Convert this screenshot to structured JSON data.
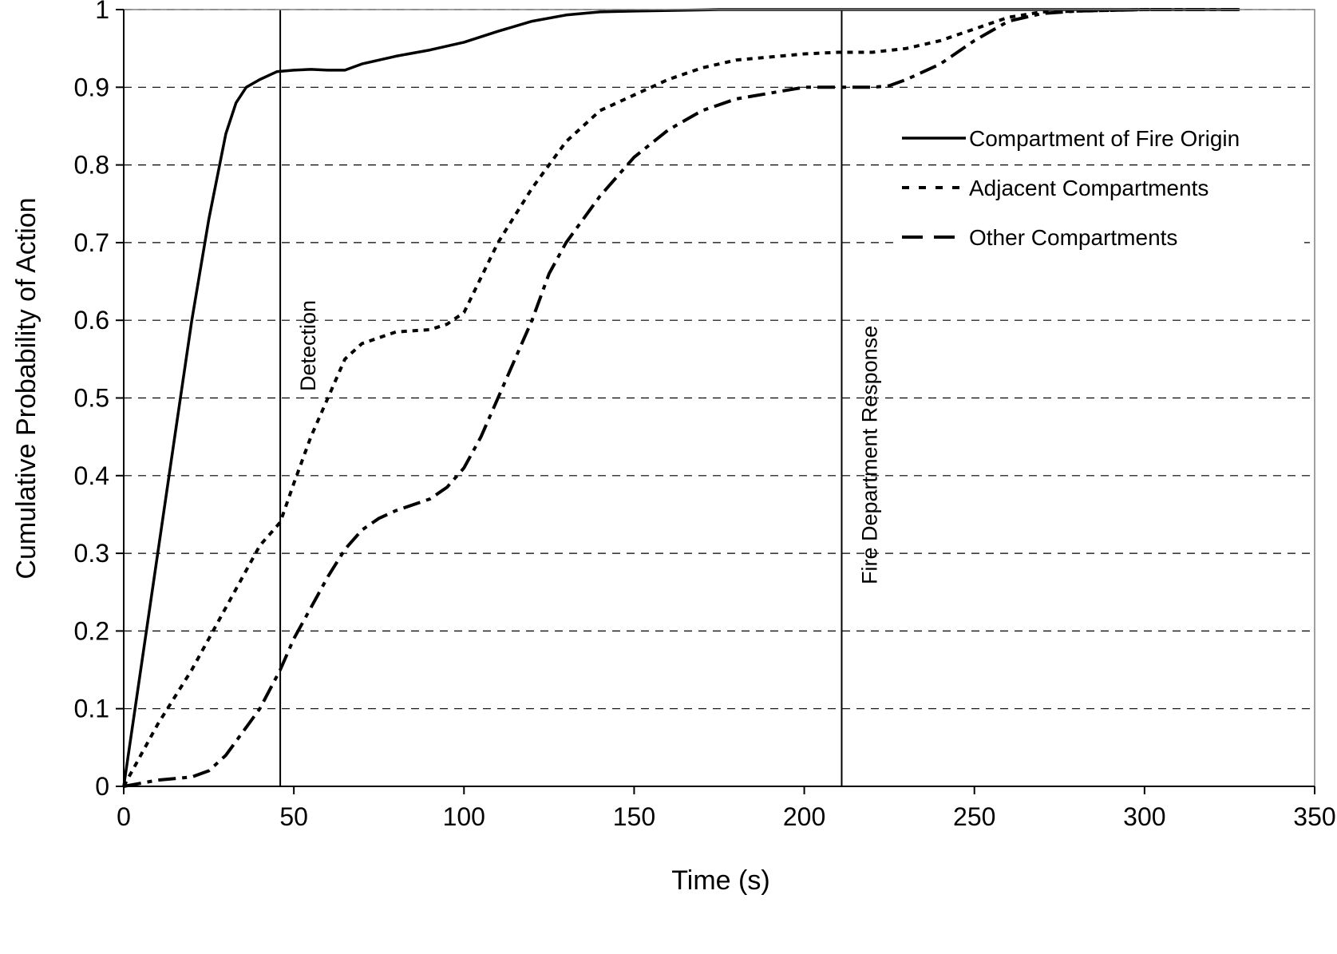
{
  "chart_data": {
    "type": "line",
    "title": "",
    "xlabel": "Time (s)",
    "ylabel": "Cumulative Probability of Action",
    "xlim": [
      0,
      350
    ],
    "ylim": [
      0,
      1
    ],
    "xticks": [
      0,
      50,
      100,
      150,
      200,
      250,
      300,
      350
    ],
    "yticks": [
      0,
      0.1,
      0.2,
      0.3,
      0.4,
      0.5,
      0.6,
      0.7,
      0.8,
      0.9,
      1
    ],
    "ytick_labels": [
      "0",
      "0.1",
      "0.2",
      "0.3",
      "0.4",
      "0.5",
      "0.6",
      "0.7",
      "0.8",
      "0.9",
      "1"
    ],
    "grid": "horizontal dashed",
    "legend_position": "right",
    "series": [
      {
        "name": "Compartment of Fire Origin",
        "line_style": "solid",
        "x": [
          0,
          5,
          10,
          15,
          20,
          25,
          30,
          33,
          36,
          40,
          45,
          50,
          55,
          60,
          65,
          70,
          80,
          90,
          100,
          110,
          120,
          130,
          140,
          150,
          175,
          200,
          250,
          300,
          328
        ],
        "y": [
          0,
          0.15,
          0.3,
          0.45,
          0.6,
          0.73,
          0.84,
          0.88,
          0.9,
          0.91,
          0.92,
          0.922,
          0.923,
          0.922,
          0.922,
          0.93,
          0.94,
          0.948,
          0.958,
          0.972,
          0.985,
          0.993,
          0.997,
          0.998,
          1,
          1,
          1,
          1,
          1
        ]
      },
      {
        "name": "Adjacent Compartments",
        "line_style": "short-dash",
        "x": [
          0,
          10,
          20,
          30,
          40,
          46,
          50,
          55,
          60,
          65,
          70,
          80,
          90,
          95,
          100,
          110,
          120,
          130,
          140,
          150,
          160,
          170,
          180,
          200,
          210,
          220,
          230,
          240,
          250,
          260,
          270,
          300,
          328
        ],
        "y": [
          0,
          0.08,
          0.15,
          0.23,
          0.31,
          0.34,
          0.39,
          0.45,
          0.5,
          0.55,
          0.57,
          0.585,
          0.588,
          0.595,
          0.61,
          0.7,
          0.77,
          0.83,
          0.87,
          0.89,
          0.91,
          0.925,
          0.935,
          0.943,
          0.945,
          0.945,
          0.95,
          0.96,
          0.975,
          0.99,
          0.997,
          1,
          1
        ]
      },
      {
        "name": "Other Compartments",
        "line_style": "long-dash",
        "x": [
          0,
          10,
          20,
          25,
          30,
          35,
          40,
          46,
          50,
          55,
          60,
          65,
          70,
          75,
          80,
          90,
          95,
          100,
          105,
          110,
          115,
          120,
          125,
          130,
          140,
          150,
          160,
          170,
          180,
          200,
          210,
          220,
          225,
          230,
          240,
          250,
          260,
          270,
          280,
          300,
          328
        ],
        "y": [
          0,
          0.008,
          0.012,
          0.02,
          0.04,
          0.07,
          0.1,
          0.15,
          0.19,
          0.23,
          0.27,
          0.305,
          0.33,
          0.345,
          0.355,
          0.37,
          0.385,
          0.41,
          0.45,
          0.5,
          0.55,
          0.6,
          0.66,
          0.7,
          0.76,
          0.81,
          0.845,
          0.87,
          0.885,
          0.9,
          0.9,
          0.9,
          0.902,
          0.91,
          0.93,
          0.96,
          0.985,
          0.995,
          0.998,
          1,
          1
        ]
      }
    ],
    "annotations": [
      {
        "text": "Detection",
        "x": 46
      },
      {
        "text": "Fire Department Response",
        "x": 211
      }
    ]
  }
}
